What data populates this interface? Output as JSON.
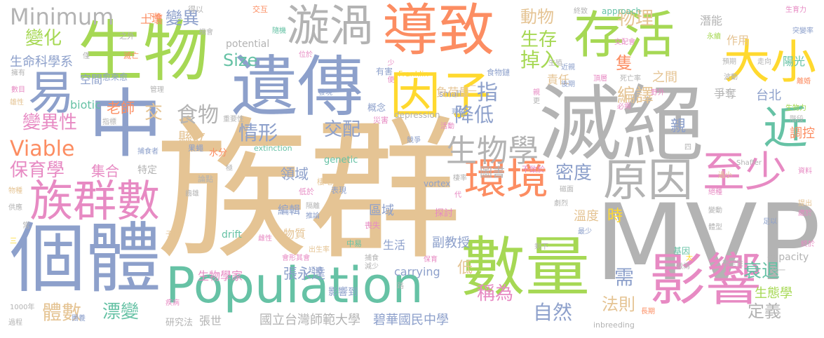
{
  "words": [
    {
      "text": "族群",
      "color": "#e5c494"
    },
    {
      "text": "MVP",
      "color": "#b3b3b3"
    },
    {
      "text": "滅絕",
      "color": "#b3b3b3"
    },
    {
      "text": "遺傳",
      "color": "#8da0cb"
    },
    {
      "text": "生物",
      "color": "#a6d854"
    },
    {
      "text": "個體",
      "color": "#8da0cb"
    },
    {
      "text": "導致",
      "color": "#fc8d62"
    },
    {
      "text": "數量",
      "color": "#a6d854"
    },
    {
      "text": "Population",
      "color": "#66c2a5"
    },
    {
      "text": "中",
      "color": "#8da0cb"
    },
    {
      "text": "存活",
      "color": "#a6d854"
    },
    {
      "text": "影響",
      "color": "#e78ac3"
    },
    {
      "text": "環境",
      "color": "#fc8d62"
    },
    {
      "text": "族群數",
      "color": "#e78ac3"
    },
    {
      "text": "漩渦",
      "color": "#b3b3b3"
    },
    {
      "text": "因子",
      "color": "#ffd92f"
    },
    {
      "text": "大小",
      "color": "#ffd92f"
    },
    {
      "text": "原因",
      "color": "#b3b3b3"
    },
    {
      "text": "至少",
      "color": "#e78ac3"
    },
    {
      "text": "易",
      "color": "#8da0cb"
    },
    {
      "text": "近",
      "color": "#66c2a5"
    },
    {
      "text": "生物學",
      "color": "#b3b3b3"
    },
    {
      "text": "Minimum",
      "color": "#b3b3b3"
    },
    {
      "text": "Viable",
      "color": "#fc8d62"
    },
    {
      "text": "保育學",
      "color": "#e78ac3"
    },
    {
      "text": "變異性",
      "color": "#e78ac3"
    },
    {
      "text": "變化",
      "color": "#a6d854"
    },
    {
      "text": "食物",
      "color": "#b3b3b3"
    },
    {
      "text": "情形",
      "color": "#8da0cb"
    },
    {
      "text": "交配",
      "color": "#8da0cb"
    },
    {
      "text": "降低",
      "color": "#8da0cb"
    },
    {
      "text": "指",
      "color": "#8da0cb"
    },
    {
      "text": "掉入",
      "color": "#a6d854"
    },
    {
      "text": "生存",
      "color": "#a6d854"
    },
    {
      "text": "物理",
      "color": "#e5c494"
    },
    {
      "text": "編譯",
      "color": "#e5c494"
    },
    {
      "text": "衰退",
      "color": "#66c2a5"
    },
    {
      "text": "稱為",
      "color": "#e78ac3"
    },
    {
      "text": "自然",
      "color": "#8da0cb"
    },
    {
      "text": "體數",
      "color": "#e5c494"
    },
    {
      "text": "漂變",
      "color": "#66c2a5"
    },
    {
      "text": "密度",
      "color": "#8da0cb"
    },
    {
      "text": "Size",
      "color": "#66c2a5"
    },
    {
      "text": "變異",
      "color": "#8da0cb"
    },
    {
      "text": "動物",
      "color": "#e5c494"
    },
    {
      "text": "法則",
      "color": "#e5c494"
    },
    {
      "text": "定義",
      "color": "#b3b3b3"
    },
    {
      "text": "國立台灣師範大學",
      "color": "#b3b3b3"
    },
    {
      "text": "碧華國民中學",
      "color": "#8da0cb"
    },
    {
      "text": "生命科學系",
      "color": "#8da0cb"
    },
    {
      "text": "張永達",
      "color": "#8da0cb"
    },
    {
      "text": "生物學家",
      "color": "#e78ac3"
    },
    {
      "text": "老師",
      "color": "#fc8d62"
    },
    {
      "text": "集合",
      "color": "#e78ac3"
    },
    {
      "text": "縣立",
      "color": "#e5c494"
    },
    {
      "text": "領域",
      "color": "#8da0cb"
    },
    {
      "text": "區域",
      "color": "#8da0cb"
    },
    {
      "text": "副教授",
      "color": "#8da0cb"
    },
    {
      "text": "台北",
      "color": "#8da0cb"
    },
    {
      "text": "生態學",
      "color": "#a6d854"
    },
    {
      "text": "調控",
      "color": "#fc8d62"
    },
    {
      "text": "親",
      "color": "#8da0cb"
    },
    {
      "text": "需",
      "color": "#8da0cb"
    },
    {
      "text": "時",
      "color": "#ffd92f"
    },
    {
      "text": "溫度",
      "color": "#e5c494"
    },
    {
      "text": "低",
      "color": "#e5c494"
    },
    {
      "text": "隻",
      "color": "#fc8d62"
    },
    {
      "text": "之間",
      "color": "#e5c494"
    },
    {
      "text": "圖書",
      "color": "#b3b3b3"
    },
    {
      "text": "責任",
      "color": "#e5c494"
    },
    {
      "text": "潛能",
      "color": "#b3b3b3"
    },
    {
      "text": "作用",
      "color": "#e5c494"
    },
    {
      "text": "陽光",
      "color": "#66c2a5"
    },
    {
      "text": "爭奪",
      "color": "#b3b3b3"
    },
    {
      "text": "交",
      "color": "#e5c494"
    },
    {
      "text": "土壤",
      "color": "#fc8d62"
    },
    {
      "text": "空間",
      "color": "#8da0cb"
    },
    {
      "text": "biotic",
      "color": "#66c2a5"
    },
    {
      "text": "potential",
      "color": "#b3b3b3"
    },
    {
      "text": "approach",
      "color": "#66c2a5"
    },
    {
      "text": "genetic",
      "color": "#66c2a5"
    },
    {
      "text": "drift",
      "color": "#66c2a5"
    },
    {
      "text": "carrying",
      "color": "#8da0cb"
    },
    {
      "text": "capacity",
      "color": "#b3b3b3"
    },
    {
      "text": "depression",
      "color": "#b3b3b3"
    },
    {
      "text": "inbreeding",
      "color": "#b3b3b3"
    },
    {
      "text": "extinction",
      "color": "#66c2a5"
    },
    {
      "text": "vortex",
      "color": "#8da0cb"
    },
    {
      "text": "small",
      "color": "#8da0cb"
    },
    {
      "text": "Franklin",
      "color": "#ffd92f"
    },
    {
      "text": "Shaffer",
      "color": "#b3b3b3"
    },
    {
      "text": "張世",
      "color": "#b3b3b3"
    },
    {
      "text": "研究法",
      "color": "#b3b3b3"
    },
    {
      "text": "特定",
      "color": "#b3b3b3"
    },
    {
      "text": "物質",
      "color": "#e5c494"
    },
    {
      "text": "生活",
      "color": "#8da0cb"
    },
    {
      "text": "影響到",
      "color": "#8da0cb"
    },
    {
      "text": "負荷量",
      "color": "#e5c494"
    },
    {
      "text": "探討",
      "color": "#e78ac3"
    },
    {
      "text": "概念",
      "color": "#8da0cb"
    },
    {
      "text": "編輯",
      "color": "#8da0cb"
    },
    {
      "text": "水分",
      "color": "#fc8d62"
    },
    {
      "text": "愈來愈",
      "color": "#8da0cb"
    },
    {
      "text": "有害",
      "color": "#8da0cb"
    },
    {
      "text": "食物鏈",
      "color": "#8da0cb"
    },
    {
      "text": "1000年",
      "color": "#b3b3b3"
    },
    {
      "text": "過程",
      "color": "#b3b3b3"
    },
    {
      "text": "基因",
      "color": "#66c2a5"
    },
    {
      "text": "最少",
      "color": "#8da0cb"
    },
    {
      "text": "足以",
      "color": "#8da0cb"
    },
    {
      "text": "提出",
      "color": "#e5c494"
    },
    {
      "text": "資料",
      "color": "#e78ac3"
    },
    {
      "text": "得以",
      "color": "#b3b3b3"
    },
    {
      "text": "交互",
      "color": "#fc8d62"
    },
    {
      "text": "終致",
      "color": "#b3b3b3"
    },
    {
      "text": "交配會",
      "color": "#e78ac3"
    },
    {
      "text": "生育力",
      "color": "#e78ac3"
    },
    {
      "text": "突變率",
      "color": "#8da0cb"
    },
    {
      "text": "永續",
      "color": "#a6d854"
    },
    {
      "text": "走向",
      "color": "#b3b3b3"
    },
    {
      "text": "預期",
      "color": "#b3b3b3"
    },
    {
      "text": "之外",
      "color": "#b3b3b3"
    },
    {
      "text": "機會",
      "color": "#b3b3b3"
    },
    {
      "text": "隨機",
      "color": "#66c2a5"
    },
    {
      "text": "滅亡",
      "color": "#fc8d62"
    },
    {
      "text": "擁有",
      "color": "#b3b3b3"
    },
    {
      "text": "管理",
      "color": "#b3b3b3"
    },
    {
      "text": "發現",
      "color": "#8da0cb"
    },
    {
      "text": "重要性",
      "color": "#b3b3b3"
    },
    {
      "text": "災害",
      "color": "#e78ac3"
    },
    {
      "text": "現象",
      "color": "#8da0cb"
    },
    {
      "text": "競爭",
      "color": "#8da0cb"
    },
    {
      "text": "活動",
      "color": "#e78ac3"
    },
    {
      "text": "論點",
      "color": "#b3b3b3"
    },
    {
      "text": "棲地",
      "color": "#e5c494"
    },
    {
      "text": "低於",
      "color": "#e78ac3"
    },
    {
      "text": "隔離",
      "color": "#b3b3b3"
    },
    {
      "text": "推論",
      "color": "#8da0cb"
    },
    {
      "text": "表現",
      "color": "#8da0cb"
    },
    {
      "text": "喪失",
      "color": "#e78ac3"
    },
    {
      "text": "中易",
      "color": "#66c2a5"
    },
    {
      "text": "出生率",
      "color": "#e5c494"
    },
    {
      "text": "捕食",
      "color": "#b3b3b3"
    },
    {
      "text": "保育",
      "color": "#e78ac3"
    },
    {
      "text": "短期",
      "color": "#8da0cb"
    },
    {
      "text": "減少",
      "color": "#b3b3b3"
    },
    {
      "text": "棲率",
      "color": "#b3b3b3"
    },
    {
      "text": "劇烈",
      "color": "#b3b3b3"
    },
    {
      "text": "磁面",
      "color": "#b3b3b3"
    },
    {
      "text": "變動",
      "color": "#b3b3b3"
    },
    {
      "text": "體型",
      "color": "#b3b3b3"
    },
    {
      "text": "剩下",
      "color": "#b3b3b3"
    },
    {
      "text": "做為",
      "color": "#b3b3b3"
    },
    {
      "text": "穩定性",
      "color": "#b3b3b3"
    },
    {
      "text": "任一",
      "color": "#b3b3b3"
    },
    {
      "text": "疾病",
      "color": "#e78ac3"
    },
    {
      "text": "長期",
      "color": "#fc8d62"
    },
    {
      "text": "團養",
      "color": "#8da0cb"
    },
    {
      "text": "路",
      "color": "#b3b3b3"
    },
    {
      "text": "數目",
      "color": "#e78ac3"
    },
    {
      "text": "雄性",
      "color": "#e5c494"
    },
    {
      "text": "雌性",
      "color": "#e78ac3"
    },
    {
      "text": "指標",
      "color": "#b3b3b3"
    },
    {
      "text": "捕食者",
      "color": "#8da0cb"
    },
    {
      "text": "果蠅",
      "color": "#8da0cb"
    },
    {
      "text": "物種",
      "color": "#e5c494"
    },
    {
      "text": "供應",
      "color": "#b3b3b3"
    },
    {
      "text": "常",
      "color": "#b3b3b3"
    },
    {
      "text": "子代",
      "color": "#e5c494"
    },
    {
      "text": "後期",
      "color": "#8da0cb"
    },
    {
      "text": "近親",
      "color": "#8da0cb"
    },
    {
      "text": "死亡率",
      "color": "#b3b3b3"
    },
    {
      "text": "極",
      "color": "#b3b3b3"
    },
    {
      "text": "必需",
      "color": "#e78ac3"
    },
    {
      "text": "波動",
      "color": "#b3b3b3"
    },
    {
      "text": "野外",
      "color": "#e78ac3"
    },
    {
      "text": "生物力",
      "color": "#a6d854"
    },
    {
      "text": "階段",
      "color": "#b3b3b3"
    },
    {
      "text": "四",
      "color": "#b3b3b3"
    },
    {
      "text": "過小",
      "color": "#e5c494"
    },
    {
      "text": "終於",
      "color": "#e78ac3"
    },
    {
      "text": "處於",
      "color": "#e78ac3"
    },
    {
      "text": "絕種",
      "color": "#e78ac3"
    },
    {
      "text": "頂層",
      "color": "#e78ac3"
    },
    {
      "text": "位於",
      "color": "#e78ac3"
    },
    {
      "text": "下降",
      "color": "#fc8d62"
    },
    {
      "text": "少",
      "color": "#e78ac3"
    },
    {
      "text": "便",
      "color": "#e78ac3"
    },
    {
      "text": "僅",
      "color": "#b3b3b3"
    },
    {
      "text": "不致於",
      "color": "#e78ac3"
    },
    {
      "text": "代",
      "color": "#e78ac3"
    },
    {
      "text": "三",
      "color": "#ffd92f"
    },
    {
      "text": "太",
      "color": "#ffd92f"
    },
    {
      "text": "更",
      "color": "#b3b3b3"
    },
    {
      "text": "親",
      "color": "#e78ac3"
    },
    {
      "text": "二",
      "color": "#e5c494"
    },
    {
      "text": "離婚",
      "color": "#fc8d62"
    },
    {
      "text": "生殖",
      "color": "#b3b3b3"
    },
    {
      "text": "齒雄",
      "color": "#b3b3b3"
    },
    {
      "text": "會形其會",
      "color": "#e78ac3"
    }
  ]
}
